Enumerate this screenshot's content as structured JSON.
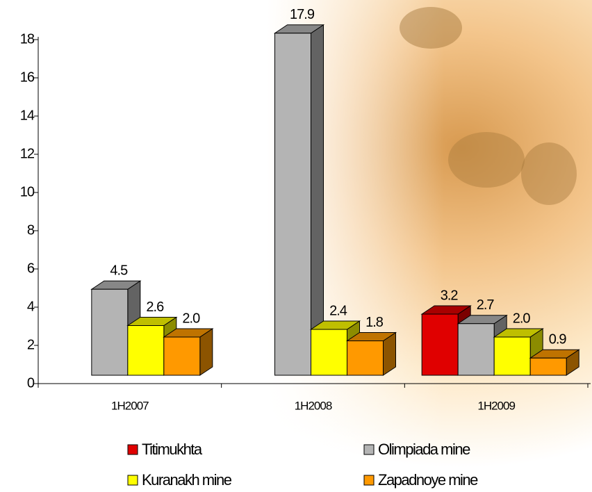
{
  "chart_data": {
    "type": "bar3d",
    "categories": [
      "1H2007",
      "1H2008",
      "1H2009"
    ],
    "series": [
      {
        "name": "Titimukhta",
        "color": "#e00000",
        "values": [
          null,
          null,
          3.2
        ],
        "value_labels": [
          null,
          null,
          "3.2"
        ]
      },
      {
        "name": "Olimpiada mine",
        "color": "#b4b4b4",
        "values": [
          4.5,
          17.9,
          2.7
        ],
        "value_labels": [
          "4.5",
          "17.9",
          "2.7"
        ]
      },
      {
        "name": "Kuranakh mine",
        "color": "#ffff00",
        "values": [
          2.6,
          2.4,
          2.0
        ],
        "value_labels": [
          "2.6",
          "2.4",
          "2.0"
        ]
      },
      {
        "name": "Zapadnoye mine",
        "color": "#ff9900",
        "values": [
          2.0,
          1.8,
          0.9
        ],
        "value_labels": [
          "2.0",
          "1.8",
          "0.9"
        ]
      }
    ],
    "ylim": [
      0,
      18
    ],
    "yticks": [
      0,
      2,
      4,
      6,
      8,
      10,
      12,
      14,
      16,
      18
    ]
  }
}
